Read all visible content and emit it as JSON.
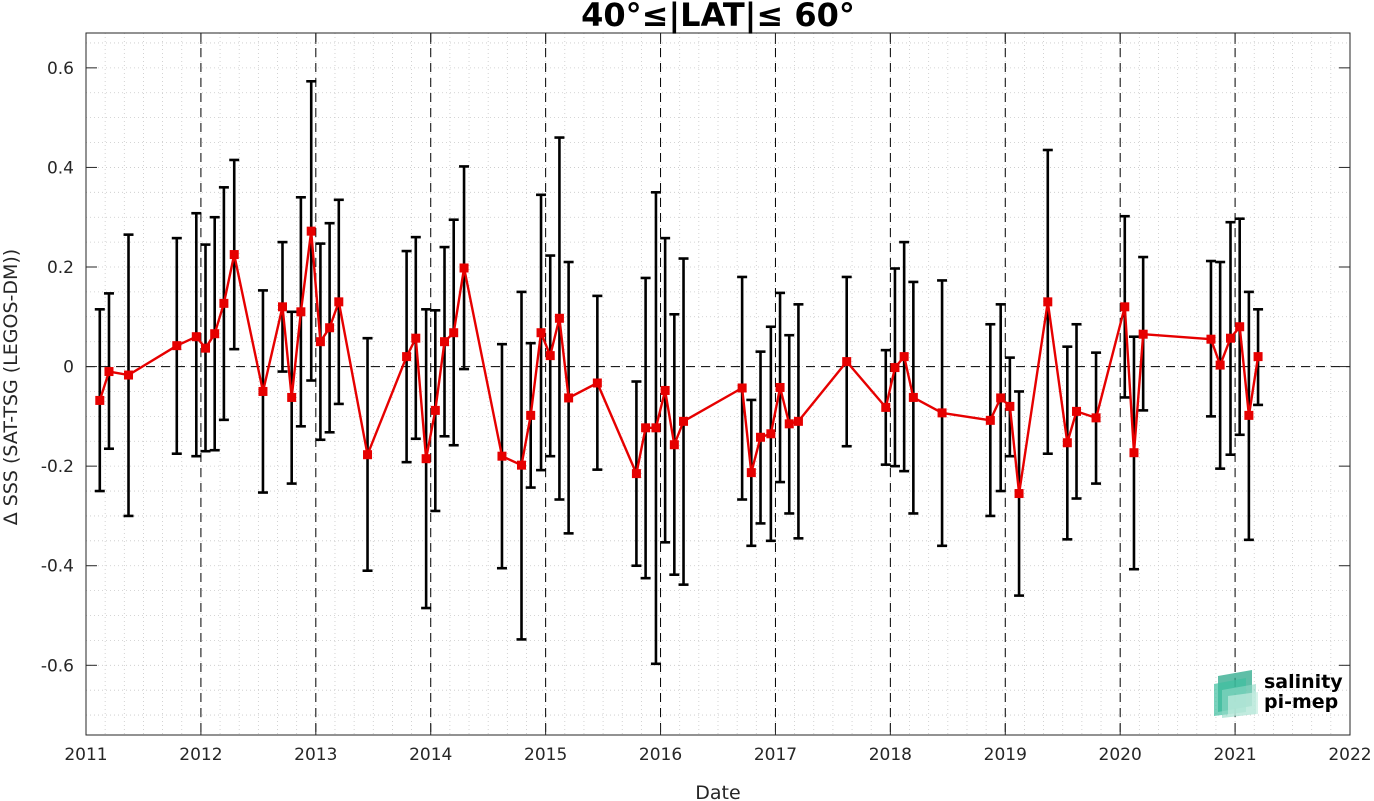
{
  "chart_data": {
    "type": "line",
    "title": "40°≤|LAT|≤ 60°",
    "xlabel": "Date",
    "ylabel": "Δ SSS (SAT-TSG (LEGOS-DM))",
    "xlim": [
      2011,
      2022
    ],
    "ylim": [
      -0.74,
      0.67
    ],
    "x_ticks": [
      2011,
      2012,
      2013,
      2014,
      2015,
      2016,
      2017,
      2018,
      2019,
      2020,
      2021,
      2022
    ],
    "x_tick_labels": [
      "2011",
      "2012",
      "2013",
      "2014",
      "2015",
      "2016",
      "2017",
      "2018",
      "2019",
      "2020",
      "2021",
      "2022"
    ],
    "y_ticks": [
      -0.6,
      -0.4,
      -0.2,
      0,
      0.2,
      0.4,
      0.6
    ],
    "y_tick_labels": [
      "-0.6",
      "-0.4",
      "-0.2",
      "0",
      "0.2",
      "0.4",
      "0.6"
    ],
    "grid": "on (minor, dotted)",
    "year_boundaries": [
      2012,
      2013,
      2014,
      2015,
      2016,
      2017,
      2018,
      2019,
      2020,
      2021
    ],
    "zero_line": 0,
    "series": [
      {
        "color": "#e60000",
        "marker": "square",
        "errorbar_color": "#000000",
        "points": [
          {
            "x": 2011.12,
            "y": -0.068,
            "err_low": -0.25,
            "err_high": 0.115
          },
          {
            "x": 2011.2,
            "y": -0.01,
            "err_low": -0.165,
            "err_high": 0.147
          },
          {
            "x": 2011.37,
            "y": -0.017,
            "err_low": -0.3,
            "err_high": 0.265
          },
          {
            "x": 2011.79,
            "y": 0.042,
            "err_low": -0.175,
            "err_high": 0.258
          },
          {
            "x": 2011.96,
            "y": 0.06,
            "err_low": -0.18,
            "err_high": 0.308
          },
          {
            "x": 2012.04,
            "y": 0.037,
            "err_low": -0.17,
            "err_high": 0.245
          },
          {
            "x": 2012.12,
            "y": 0.066,
            "err_low": -0.168,
            "err_high": 0.3
          },
          {
            "x": 2012.2,
            "y": 0.127,
            "err_low": -0.107,
            "err_high": 0.36
          },
          {
            "x": 2012.29,
            "y": 0.225,
            "err_low": 0.035,
            "err_high": 0.415
          },
          {
            "x": 2012.54,
            "y": -0.05,
            "err_low": -0.253,
            "err_high": 0.153
          },
          {
            "x": 2012.71,
            "y": 0.12,
            "err_low": -0.01,
            "err_high": 0.25
          },
          {
            "x": 2012.79,
            "y": -0.062,
            "err_low": -0.235,
            "err_high": 0.11
          },
          {
            "x": 2012.87,
            "y": 0.11,
            "err_low": -0.12,
            "err_high": 0.34
          },
          {
            "x": 2012.96,
            "y": 0.272,
            "err_low": -0.028,
            "err_high": 0.573
          },
          {
            "x": 2013.04,
            "y": 0.05,
            "err_low": -0.147,
            "err_high": 0.247
          },
          {
            "x": 2013.12,
            "y": 0.078,
            "err_low": -0.132,
            "err_high": 0.288
          },
          {
            "x": 2013.2,
            "y": 0.13,
            "err_low": -0.075,
            "err_high": 0.335
          },
          {
            "x": 2013.45,
            "y": -0.177,
            "err_low": -0.41,
            "err_high": 0.057
          },
          {
            "x": 2013.79,
            "y": 0.02,
            "err_low": -0.192,
            "err_high": 0.232
          },
          {
            "x": 2013.87,
            "y": 0.057,
            "err_low": -0.145,
            "err_high": 0.26
          },
          {
            "x": 2013.96,
            "y": -0.185,
            "err_low": -0.485,
            "err_high": 0.115
          },
          {
            "x": 2014.04,
            "y": -0.088,
            "err_low": -0.29,
            "err_high": 0.113
          },
          {
            "x": 2014.12,
            "y": 0.05,
            "err_low": -0.14,
            "err_high": 0.24
          },
          {
            "x": 2014.2,
            "y": 0.068,
            "err_low": -0.158,
            "err_high": 0.295
          },
          {
            "x": 2014.29,
            "y": 0.198,
            "err_low": -0.005,
            "err_high": 0.402
          },
          {
            "x": 2014.62,
            "y": -0.18,
            "err_low": -0.405,
            "err_high": 0.045
          },
          {
            "x": 2014.79,
            "y": -0.198,
            "err_low": -0.548,
            "err_high": 0.15
          },
          {
            "x": 2014.87,
            "y": -0.098,
            "err_low": -0.243,
            "err_high": 0.047
          },
          {
            "x": 2014.96,
            "y": 0.068,
            "err_low": -0.208,
            "err_high": 0.345
          },
          {
            "x": 2015.04,
            "y": 0.022,
            "err_low": -0.18,
            "err_high": 0.223
          },
          {
            "x": 2015.12,
            "y": 0.097,
            "err_low": -0.267,
            "err_high": 0.46
          },
          {
            "x": 2015.2,
            "y": -0.063,
            "err_low": -0.335,
            "err_high": 0.21
          },
          {
            "x": 2015.45,
            "y": -0.033,
            "err_low": -0.207,
            "err_high": 0.142
          },
          {
            "x": 2015.79,
            "y": -0.215,
            "err_low": -0.4,
            "err_high": -0.03
          },
          {
            "x": 2015.87,
            "y": -0.123,
            "err_low": -0.425,
            "err_high": 0.178
          },
          {
            "x": 2015.96,
            "y": -0.123,
            "err_low": -0.597,
            "err_high": 0.35
          },
          {
            "x": 2016.04,
            "y": -0.048,
            "err_low": -0.353,
            "err_high": 0.258
          },
          {
            "x": 2016.12,
            "y": -0.157,
            "err_low": -0.418,
            "err_high": 0.105
          },
          {
            "x": 2016.2,
            "y": -0.11,
            "err_low": -0.438,
            "err_high": 0.217
          },
          {
            "x": 2016.71,
            "y": -0.043,
            "err_low": -0.267,
            "err_high": 0.18
          },
          {
            "x": 2016.79,
            "y": -0.213,
            "err_low": -0.36,
            "err_high": -0.067
          },
          {
            "x": 2016.87,
            "y": -0.142,
            "err_low": -0.315,
            "err_high": 0.03
          },
          {
            "x": 2016.96,
            "y": -0.135,
            "err_low": -0.35,
            "err_high": 0.08
          },
          {
            "x": 2017.04,
            "y": -0.042,
            "err_low": -0.232,
            "err_high": 0.148
          },
          {
            "x": 2017.12,
            "y": -0.115,
            "err_low": -0.295,
            "err_high": 0.063
          },
          {
            "x": 2017.2,
            "y": -0.11,
            "err_low": -0.345,
            "err_high": 0.125
          },
          {
            "x": 2017.62,
            "y": 0.01,
            "err_low": -0.16,
            "err_high": 0.18
          },
          {
            "x": 2017.96,
            "y": -0.082,
            "err_low": -0.197,
            "err_high": 0.033
          },
          {
            "x": 2018.04,
            "y": -0.002,
            "err_low": -0.2,
            "err_high": 0.197
          },
          {
            "x": 2018.12,
            "y": 0.02,
            "err_low": -0.21,
            "err_high": 0.25
          },
          {
            "x": 2018.2,
            "y": -0.062,
            "err_low": -0.295,
            "err_high": 0.17
          },
          {
            "x": 2018.45,
            "y": -0.093,
            "err_low": -0.36,
            "err_high": 0.173
          },
          {
            "x": 2018.87,
            "y": -0.108,
            "err_low": -0.3,
            "err_high": 0.085
          },
          {
            "x": 2018.96,
            "y": -0.063,
            "err_low": -0.25,
            "err_high": 0.125
          },
          {
            "x": 2019.04,
            "y": -0.08,
            "err_low": -0.18,
            "err_high": 0.018
          },
          {
            "x": 2019.12,
            "y": -0.255,
            "err_low": -0.46,
            "err_high": -0.05
          },
          {
            "x": 2019.37,
            "y": 0.13,
            "err_low": -0.175,
            "err_high": 0.435
          },
          {
            "x": 2019.54,
            "y": -0.153,
            "err_low": -0.347,
            "err_high": 0.04
          },
          {
            "x": 2019.62,
            "y": -0.09,
            "err_low": -0.265,
            "err_high": 0.085
          },
          {
            "x": 2019.79,
            "y": -0.103,
            "err_low": -0.235,
            "err_high": 0.028
          },
          {
            "x": 2020.04,
            "y": 0.12,
            "err_low": -0.062,
            "err_high": 0.302
          },
          {
            "x": 2020.12,
            "y": -0.173,
            "err_low": -0.407,
            "err_high": 0.06
          },
          {
            "x": 2020.2,
            "y": 0.065,
            "err_low": -0.088,
            "err_high": 0.22
          },
          {
            "x": 2020.79,
            "y": 0.055,
            "err_low": -0.1,
            "err_high": 0.212
          },
          {
            "x": 2020.87,
            "y": 0.003,
            "err_low": -0.205,
            "err_high": 0.21
          },
          {
            "x": 2020.96,
            "y": 0.057,
            "err_low": -0.177,
            "err_high": 0.29
          },
          {
            "x": 2021.04,
            "y": 0.08,
            "err_low": -0.137,
            "err_high": 0.297
          },
          {
            "x": 2021.12,
            "y": -0.098,
            "err_low": -0.348,
            "err_high": 0.15
          },
          {
            "x": 2021.2,
            "y": 0.02,
            "err_low": -0.077,
            "err_high": 0.115
          }
        ]
      }
    ]
  },
  "logo": {
    "line1": "salinity",
    "line2": "pi-mep",
    "text_color": "#1a9e8f"
  }
}
